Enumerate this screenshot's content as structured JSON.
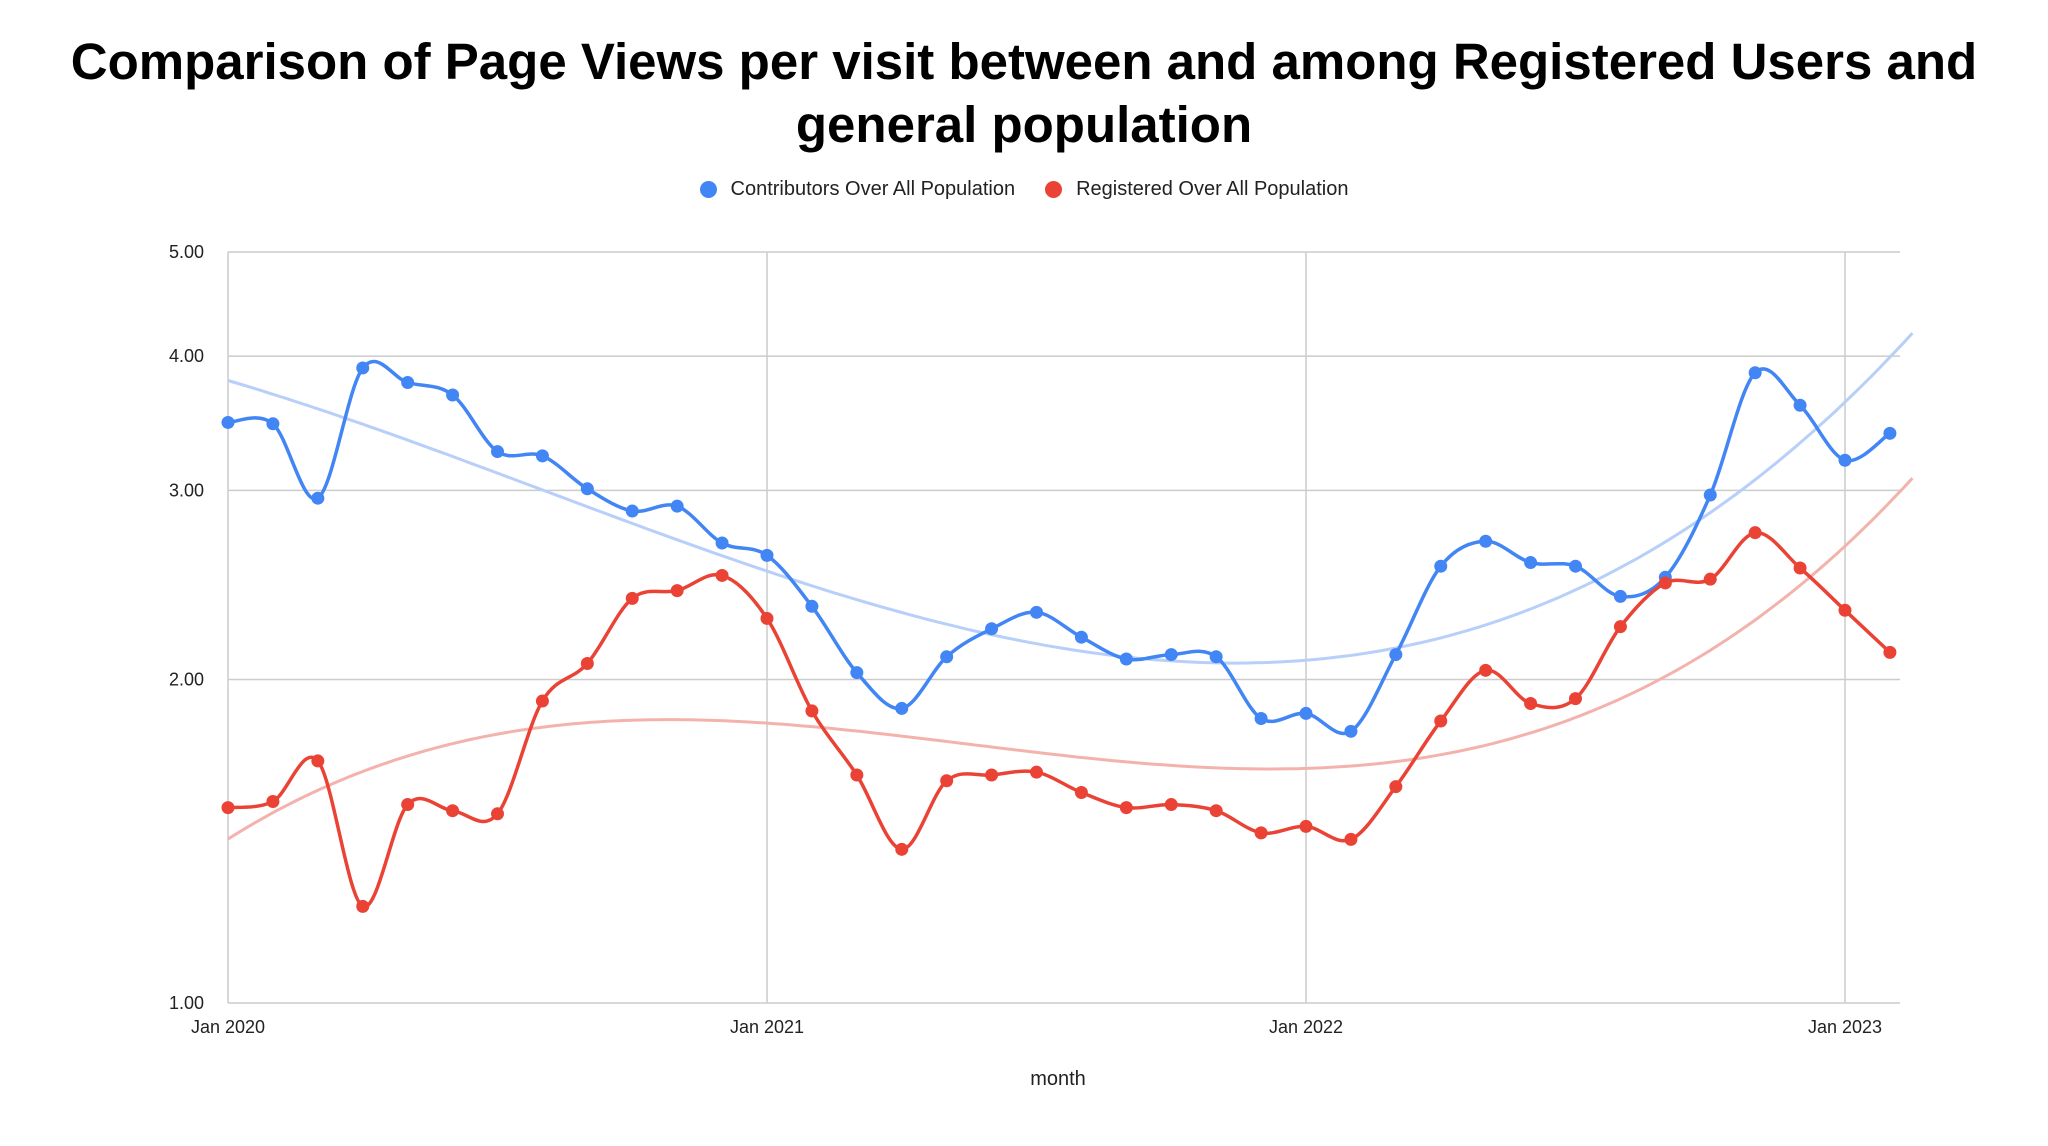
{
  "title_lines": [
    "Comparison of Page Views per visit between and among Registered Users and",
    "general population"
  ],
  "colors": {
    "contributors": "#4285F4",
    "registered": "#EA4335",
    "contributors_trend": "#b7cff9",
    "registered_trend": "#f3b3ac",
    "grid": "#cccccc"
  },
  "chart_data": {
    "type": "line",
    "title": "Comparison of Page Views per visit between and among Registered Users and general population",
    "xlabel": "month",
    "ylabel": "",
    "y_scale": "log",
    "ylim": [
      1.0,
      5.0
    ],
    "y_ticks": [
      "1.00",
      "2.00",
      "3.00",
      "4.00",
      "5.00"
    ],
    "x_ticks": [
      "Jan 2020",
      "Jan 2021",
      "Jan 2022",
      "Jan 2023"
    ],
    "x": [
      "2020-01",
      "2020-02",
      "2020-03",
      "2020-04",
      "2020-05",
      "2020-06",
      "2020-07",
      "2020-08",
      "2020-09",
      "2020-10",
      "2020-11",
      "2020-12",
      "2021-01",
      "2021-02",
      "2021-03",
      "2021-04",
      "2021-05",
      "2021-06",
      "2021-07",
      "2021-08",
      "2021-09",
      "2021-10",
      "2021-11",
      "2021-12",
      "2022-01",
      "2022-02",
      "2022-03",
      "2022-04",
      "2022-05",
      "2022-06",
      "2022-07",
      "2022-08",
      "2022-09",
      "2022-10",
      "2022-11",
      "2022-12",
      "2023-01",
      "2023-02"
    ],
    "legend_position": "top",
    "grid": true,
    "trendlines": true,
    "series": [
      {
        "name": "Contributors Over All Population",
        "values": [
          3.47,
          3.46,
          2.95,
          3.9,
          3.78,
          3.68,
          3.26,
          3.23,
          3.01,
          2.87,
          2.9,
          2.68,
          2.61,
          2.34,
          2.03,
          1.88,
          2.1,
          2.23,
          2.31,
          2.19,
          2.09,
          2.11,
          2.1,
          1.84,
          1.86,
          1.79,
          2.11,
          2.55,
          2.69,
          2.57,
          2.55,
          2.39,
          2.49,
          2.97,
          3.86,
          3.6,
          3.2,
          3.39
        ]
      },
      {
        "name": "Registered Over All Population",
        "values": [
          1.52,
          1.54,
          1.68,
          1.23,
          1.53,
          1.51,
          1.5,
          1.91,
          2.07,
          2.38,
          2.42,
          2.5,
          2.28,
          1.87,
          1.63,
          1.39,
          1.61,
          1.63,
          1.64,
          1.57,
          1.52,
          1.53,
          1.51,
          1.44,
          1.46,
          1.42,
          1.59,
          1.83,
          2.04,
          1.9,
          1.92,
          2.24,
          2.46,
          2.48,
          2.74,
          2.54,
          2.32,
          2.12
        ]
      }
    ]
  }
}
